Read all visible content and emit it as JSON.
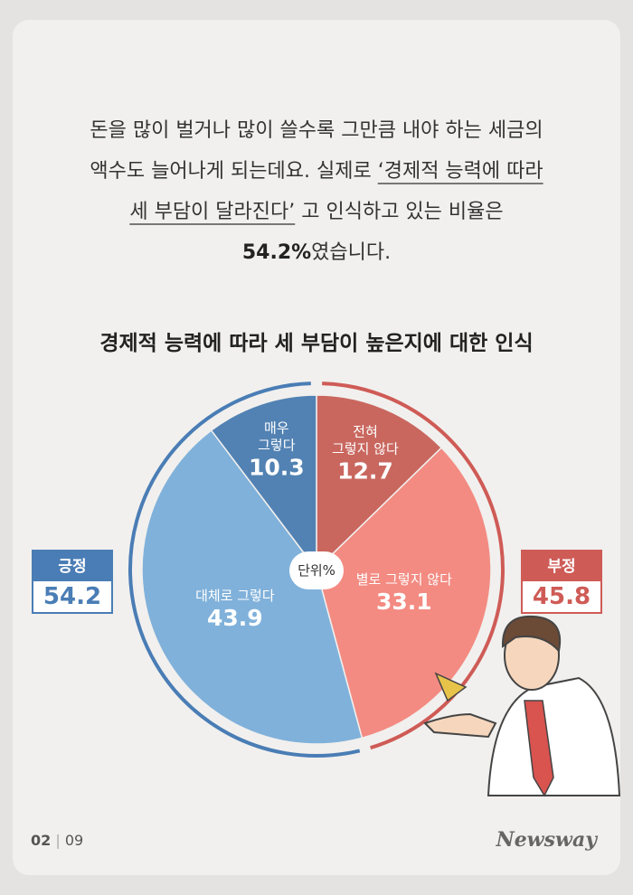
{
  "intro": [
    "돈을 많이 벌거나 많이 쓸수록 그만큼 내야 하는 세금의",
    "액수도 늘어나게 되는데요. 실제로",
    "‘경제적 능력에 따라",
    "세 부담이 달라진다’",
    "고 인식하고 있는 비율은",
    "54.2%",
    "였습니다."
  ],
  "chart_data": {
    "type": "pie",
    "title": "경제적 능력에 따라 세 부담이 높은지에 대한 인식",
    "categories": [
      "전혀\n그렇지 않다",
      "별로 그렇지 않다",
      "대체로 그렇다",
      "매우\n그렇다"
    ],
    "values": [
      12.7,
      33.1,
      43.9,
      10.3
    ],
    "colors": [
      "#c9675f",
      "#f38b82",
      "#80b1da",
      "#5282b3"
    ],
    "center_label": "단위",
    "unit": "%",
    "groups": [
      {
        "name": "부정",
        "value": 45.8,
        "color": "#cf5b56"
      },
      {
        "name": "긍정",
        "value": 54.2,
        "color": "#4a7db5"
      }
    ]
  },
  "footer": {
    "page": "02",
    "separator": "|",
    "total": "09",
    "brand": "Newsway"
  }
}
